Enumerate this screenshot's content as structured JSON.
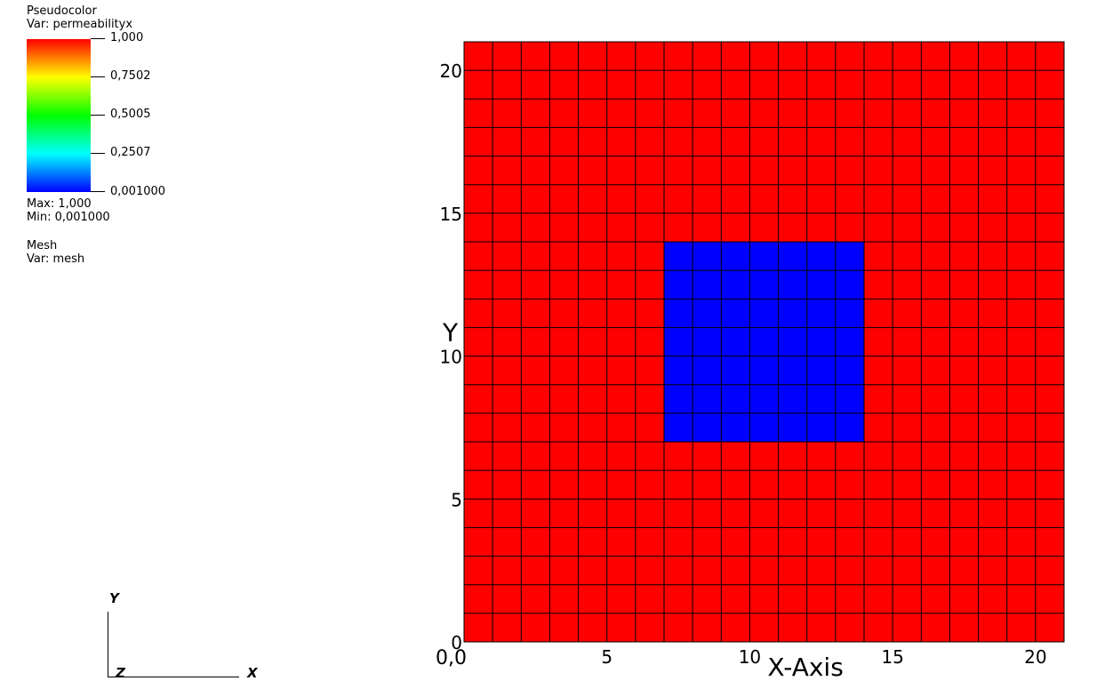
{
  "legend": {
    "plot_type": "Pseudocolor",
    "var_label": "Var: permeabilityx",
    "colorbar_ticks": [
      "1,000",
      "0,7502",
      "0,5005",
      "0,2507",
      "0,001000"
    ],
    "max_label": "Max:  1,000",
    "min_label": "Min:  0,001000",
    "mesh_title": "Mesh",
    "mesh_var_label": "Var: mesh"
  },
  "triad": {
    "x": "X",
    "y": "Y",
    "z": "Z"
  },
  "colors": {
    "high": "#ff0000",
    "low": "#0000ff",
    "grid": "#000000"
  },
  "chart_data": {
    "type": "heatmap",
    "title": "",
    "xlabel": "X-Axis",
    "ylabel": "Y",
    "xlim": [
      0,
      21
    ],
    "ylim": [
      0,
      21
    ],
    "x_ticks": [
      0,
      5,
      10,
      15,
      20
    ],
    "y_ticks": [
      0,
      5,
      10,
      15,
      20
    ],
    "x_tick_labels": [
      "0",
      "5",
      "10",
      "15",
      "20"
    ],
    "y_tick_labels": [
      "0",
      "5",
      "10",
      "15",
      "20"
    ],
    "origin_overlap_label": "0,0",
    "grid_cells": 21,
    "background_value": 1.0,
    "regions": [
      {
        "x0": 7,
        "x1": 14,
        "y0": 7,
        "y1": 14,
        "value": 0.001
      }
    ],
    "color_range": [
      0.001,
      1.0
    ]
  }
}
